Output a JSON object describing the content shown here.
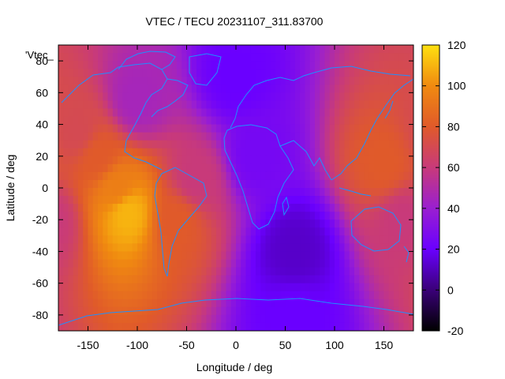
{
  "chart_data": {
    "type": "heatmap",
    "title": "VTEC / TECU 20231107_311.83700",
    "xlabel": "Longitude / deg",
    "ylabel": "Latitude / deg",
    "key_label": "'Vtec_",
    "xlim": [
      -180,
      180
    ],
    "ylim": [
      -90,
      90
    ],
    "x_ticks": [
      -150,
      -100,
      -50,
      0,
      50,
      100,
      150
    ],
    "y_ticks": [
      -80,
      -60,
      -40,
      -20,
      0,
      20,
      40,
      60,
      80
    ],
    "colorbar": {
      "range": [
        -20,
        120
      ],
      "ticks": [
        -20,
        0,
        20,
        40,
        60,
        80,
        100,
        120
      ],
      "palette": [
        "#000000",
        "#3a0078",
        "#6a00ff",
        "#9a1fd0",
        "#c83a7a",
        "#e05a2a",
        "#f08a10",
        "#ffe010"
      ]
    },
    "grid": false,
    "coastline_color": "#1e90ff",
    "field_samples": [
      {
        "lon": -110,
        "lat": -15,
        "vtec": 110
      },
      {
        "lon": -120,
        "lat": 0,
        "vtec": 95
      },
      {
        "lon": -140,
        "lat": 20,
        "vtec": 80
      },
      {
        "lon": -160,
        "lat": 35,
        "vtec": 70
      },
      {
        "lon": -60,
        "lat": -20,
        "vtec": 80
      },
      {
        "lon": -40,
        "lat": 5,
        "vtec": 60
      },
      {
        "lon": -100,
        "lat": 55,
        "vtec": 45
      },
      {
        "lon": 150,
        "lat": 15,
        "vtec": 80
      },
      {
        "lon": 170,
        "lat": -20,
        "vtec": 60
      },
      {
        "lon": 20,
        "lat": 20,
        "vtec": 25
      },
      {
        "lon": 60,
        "lat": -40,
        "vtec": 12
      },
      {
        "lon": 60,
        "lat": -80,
        "vtec": 20
      },
      {
        "lon": 0,
        "lat": 70,
        "vtec": 20
      }
    ]
  }
}
